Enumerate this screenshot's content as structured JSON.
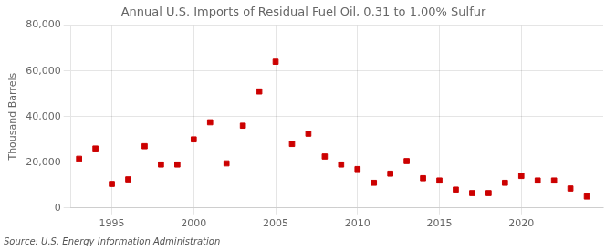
{
  "chart_data": {
    "type": "scatter",
    "title": "Annual U.S. Imports of Residual Fuel Oil, 0.31 to 1.00% Sulfur",
    "ylabel": "Thousand Barrels",
    "source": "Source: U.S. Energy Information Administration",
    "color": "#cc0000",
    "marker": "square",
    "grid": true,
    "x": [
      1993,
      1994,
      1995,
      1996,
      1997,
      1998,
      1999,
      2000,
      2001,
      2002,
      2003,
      2004,
      2005,
      2006,
      2007,
      2008,
      2009,
      2010,
      2011,
      2012,
      2013,
      2014,
      2015,
      2016,
      2017,
      2018,
      2019,
      2020,
      2021,
      2022,
      2023,
      2024
    ],
    "values": [
      21500,
      26000,
      10500,
      12500,
      27000,
      19000,
      19000,
      30000,
      37500,
      19500,
      36000,
      51000,
      64000,
      28000,
      32500,
      22500,
      19000,
      17000,
      11000,
      15000,
      20500,
      13000,
      12000,
      8000,
      6500,
      6500,
      11000,
      14000,
      12000,
      12000,
      8500,
      5000
    ],
    "xlim": [
      1992.5,
      2025
    ],
    "xticks": [
      1995,
      2000,
      2005,
      2010,
      2015,
      2020
    ],
    "ylim": [
      0,
      80000
    ],
    "yticks": [
      0,
      {
        "value": 20000,
        "label": "20,000"
      },
      {
        "value": 40000,
        "label": "40,000"
      },
      {
        "value": 60000,
        "label": "60,000"
      },
      {
        "value": 80000,
        "label": "80,000"
      }
    ]
  }
}
